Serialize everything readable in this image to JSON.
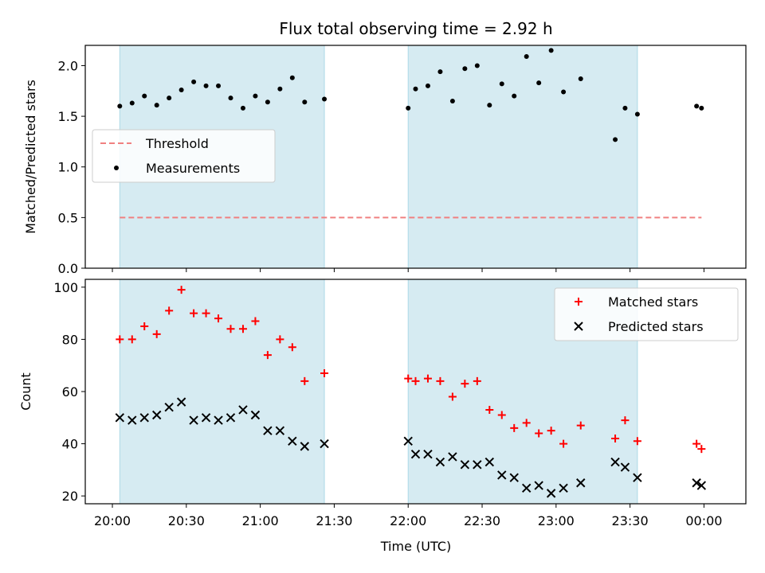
{
  "chart_data": {
    "title": "Flux total observing time = 2.92 h",
    "xlabel": "Time (UTC)",
    "x_ticks": [
      "20:00",
      "20:30",
      "21:00",
      "21:30",
      "22:00",
      "22:30",
      "23:00",
      "23:30",
      "00:00"
    ],
    "xlim": [
      "19:49",
      "00:17"
    ],
    "shaded_intervals": [
      [
        "20:03",
        "21:26"
      ],
      [
        "22:00",
        "23:33"
      ]
    ],
    "colors": {
      "shade": "#add8e6",
      "threshold": "#f08080",
      "measurements": "#000000",
      "matched": "#ff0000",
      "predicted": "#000000"
    },
    "panels": [
      {
        "type": "scatter",
        "ylabel": "Matched/Predicted stars",
        "ylim": [
          0,
          2.2
        ],
        "y_ticks": [
          "0.0",
          "0.5",
          "1.0",
          "1.5",
          "2.0"
        ],
        "legend_placement": "center-left",
        "threshold": {
          "name": "Threshold",
          "value": 0.5,
          "x_range": [
            "20:03",
            "23:59"
          ]
        },
        "series": [
          {
            "name": "Measurements",
            "marker": "dot",
            "points": [
              [
                "20:03",
                1.6
              ],
              [
                "20:08",
                1.63
              ],
              [
                "20:13",
                1.7
              ],
              [
                "20:18",
                1.61
              ],
              [
                "20:23",
                1.68
              ],
              [
                "20:28",
                1.76
              ],
              [
                "20:33",
                1.84
              ],
              [
                "20:38",
                1.8
              ],
              [
                "20:43",
                1.8
              ],
              [
                "20:48",
                1.68
              ],
              [
                "20:53",
                1.58
              ],
              [
                "20:58",
                1.7
              ],
              [
                "21:03",
                1.64
              ],
              [
                "21:08",
                1.77
              ],
              [
                "21:13",
                1.88
              ],
              [
                "21:18",
                1.64
              ],
              [
                "21:26",
                1.67
              ],
              [
                "22:00",
                1.58
              ],
              [
                "22:03",
                1.77
              ],
              [
                "22:08",
                1.8
              ],
              [
                "22:13",
                1.94
              ],
              [
                "22:18",
                1.65
              ],
              [
                "22:23",
                1.97
              ],
              [
                "22:28",
                2.0
              ],
              [
                "22:33",
                1.61
              ],
              [
                "22:38",
                1.82
              ],
              [
                "22:43",
                1.7
              ],
              [
                "22:48",
                2.09
              ],
              [
                "22:53",
                1.83
              ],
              [
                "22:58",
                2.15
              ],
              [
                "23:03",
                1.74
              ],
              [
                "23:10",
                1.87
              ],
              [
                "23:24",
                1.27
              ],
              [
                "23:28",
                1.58
              ],
              [
                "23:33",
                1.52
              ],
              [
                "23:57",
                1.6
              ],
              [
                "23:59",
                1.58
              ]
            ]
          }
        ]
      },
      {
        "type": "scatter",
        "ylabel": "Count",
        "ylim": [
          17,
          103
        ],
        "y_ticks": [
          "20",
          "40",
          "60",
          "80",
          "100"
        ],
        "legend_placement": "top-right",
        "series": [
          {
            "name": "Matched stars",
            "marker": "plus",
            "points": [
              [
                "20:03",
                80
              ],
              [
                "20:08",
                80
              ],
              [
                "20:13",
                85
              ],
              [
                "20:18",
                82
              ],
              [
                "20:23",
                91
              ],
              [
                "20:28",
                99
              ],
              [
                "20:33",
                90
              ],
              [
                "20:38",
                90
              ],
              [
                "20:43",
                88
              ],
              [
                "20:48",
                84
              ],
              [
                "20:53",
                84
              ],
              [
                "20:58",
                87
              ],
              [
                "21:03",
                74
              ],
              [
                "21:08",
                80
              ],
              [
                "21:13",
                77
              ],
              [
                "21:18",
                64
              ],
              [
                "21:26",
                67
              ],
              [
                "22:00",
                65
              ],
              [
                "22:03",
                64
              ],
              [
                "22:08",
                65
              ],
              [
                "22:13",
                64
              ],
              [
                "22:18",
                58
              ],
              [
                "22:23",
                63
              ],
              [
                "22:28",
                64
              ],
              [
                "22:33",
                53
              ],
              [
                "22:38",
                51
              ],
              [
                "22:43",
                46
              ],
              [
                "22:48",
                48
              ],
              [
                "22:53",
                44
              ],
              [
                "22:58",
                45
              ],
              [
                "23:03",
                40
              ],
              [
                "23:10",
                47
              ],
              [
                "23:24",
                42
              ],
              [
                "23:28",
                49
              ],
              [
                "23:33",
                41
              ],
              [
                "23:57",
                40
              ],
              [
                "23:59",
                38
              ]
            ]
          },
          {
            "name": "Predicted stars",
            "marker": "x",
            "points": [
              [
                "20:03",
                50
              ],
              [
                "20:08",
                49
              ],
              [
                "20:13",
                50
              ],
              [
                "20:18",
                51
              ],
              [
                "20:23",
                54
              ],
              [
                "20:28",
                56
              ],
              [
                "20:33",
                49
              ],
              [
                "20:38",
                50
              ],
              [
                "20:43",
                49
              ],
              [
                "20:48",
                50
              ],
              [
                "20:53",
                53
              ],
              [
                "20:58",
                51
              ],
              [
                "21:03",
                45
              ],
              [
                "21:08",
                45
              ],
              [
                "21:13",
                41
              ],
              [
                "21:18",
                39
              ],
              [
                "21:26",
                40
              ],
              [
                "22:00",
                41
              ],
              [
                "22:03",
                36
              ],
              [
                "22:08",
                36
              ],
              [
                "22:13",
                33
              ],
              [
                "22:18",
                35
              ],
              [
                "22:23",
                32
              ],
              [
                "22:28",
                32
              ],
              [
                "22:33",
                33
              ],
              [
                "22:38",
                28
              ],
              [
                "22:43",
                27
              ],
              [
                "22:48",
                23
              ],
              [
                "22:53",
                24
              ],
              [
                "22:58",
                21
              ],
              [
                "23:03",
                23
              ],
              [
                "23:10",
                25
              ],
              [
                "23:24",
                33
              ],
              [
                "23:28",
                31
              ],
              [
                "23:33",
                27
              ],
              [
                "23:57",
                25
              ],
              [
                "23:59",
                24
              ]
            ]
          }
        ]
      }
    ]
  }
}
